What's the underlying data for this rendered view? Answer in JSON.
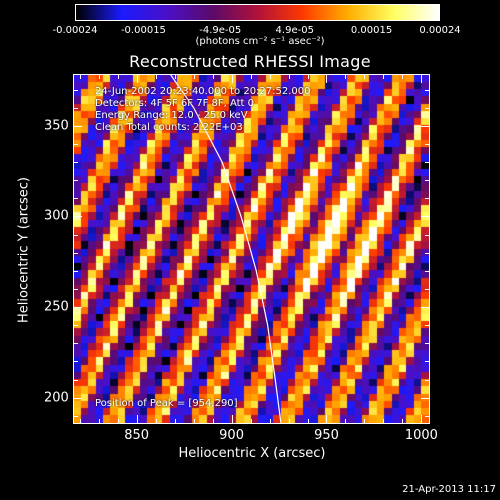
{
  "colorbar": {
    "tick_labels": [
      "-0.00024",
      "-0.00015",
      "-4.9e-05",
      "4.9e-05",
      "0.00015",
      "0.00024"
    ],
    "tick_values": [
      -0.00024,
      -0.00015,
      -4.9e-05,
      4.9e-05,
      0.00015,
      0.00024
    ],
    "range": [
      -0.00024,
      0.00024
    ],
    "units": "(photons cm⁻² s⁻¹ asec⁻²)",
    "colormap": [
      "#000000",
      "#1b1bff",
      "#4a10c8",
      "#5a0a6a",
      "#b0123a",
      "#ff3a00",
      "#ffae00",
      "#ffff60",
      "#ffffff"
    ]
  },
  "chart_data": {
    "type": "heatmap",
    "title": "Reconstructed RHESSI Image",
    "xlabel": "Heliocentric X (arcsec)",
    "ylabel": "Heliocentric Y (arcsec)",
    "xlim": [
      817,
      1004
    ],
    "ylim": [
      186,
      378
    ],
    "x_ticks": [
      850,
      900,
      950,
      1000
    ],
    "y_ticks": [
      200,
      250,
      300,
      350
    ],
    "info_lines": [
      "24-Jun-2002 20:23:40.000 to 20:27:52.000",
      "Detectors: 4F 5F 6F 7F 8F, Att 0",
      "Energy Range: 12.0 - 25.0 keV",
      "Clean    Total counts: 2.22E+03"
    ],
    "peak_annotation": "Position of Peak = [954,290]",
    "peak": [
      954,
      290
    ],
    "limb_curve": [
      [
        868,
        378
      ],
      [
        880,
        360
      ],
      [
        895,
        330
      ],
      [
        905,
        300
      ],
      [
        913,
        270
      ],
      [
        919,
        240
      ],
      [
        923,
        210
      ],
      [
        926,
        186
      ]
    ]
  },
  "footer": {
    "datestamp": "21-Apr-2013 11:17"
  }
}
